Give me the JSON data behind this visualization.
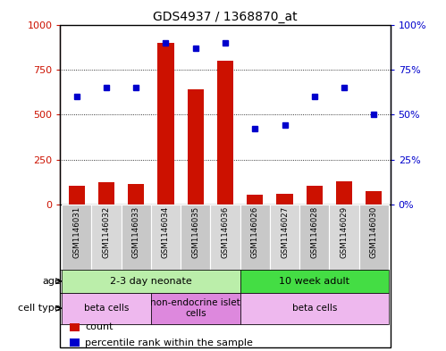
{
  "title": "GDS4937 / 1368870_at",
  "samples": [
    "GSM1146031",
    "GSM1146032",
    "GSM1146033",
    "GSM1146034",
    "GSM1146035",
    "GSM1146036",
    "GSM1146026",
    "GSM1146027",
    "GSM1146028",
    "GSM1146029",
    "GSM1146030"
  ],
  "counts": [
    105,
    125,
    115,
    900,
    640,
    800,
    55,
    60,
    105,
    130,
    75
  ],
  "percentiles": [
    60,
    65,
    65,
    90,
    87,
    90,
    42,
    44,
    60,
    65,
    50
  ],
  "ylim_left": [
    0,
    1000
  ],
  "ylim_right": [
    0,
    100
  ],
  "yticks_left": [
    0,
    250,
    500,
    750,
    1000
  ],
  "ytick_labels_left": [
    "0",
    "250",
    "500",
    "750",
    "1000"
  ],
  "yticks_right": [
    0,
    25,
    50,
    75,
    100
  ],
  "ytick_labels_right": [
    "0%",
    "25%",
    "50%",
    "75%",
    "100%"
  ],
  "bar_color": "#cc1100",
  "dot_color": "#0000cc",
  "grid_color": "#000000",
  "age_groups": [
    {
      "label": "2-3 day neonate",
      "start": 0,
      "end": 6,
      "color": "#bbeeaa"
    },
    {
      "label": "10 week adult",
      "start": 6,
      "end": 11,
      "color": "#44dd44"
    }
  ],
  "cell_type_groups": [
    {
      "label": "beta cells",
      "start": 0,
      "end": 3,
      "color": "#eeb8ee"
    },
    {
      "label": "non-endocrine islet\ncells",
      "start": 3,
      "end": 6,
      "color": "#dd88dd"
    },
    {
      "label": "beta cells",
      "start": 6,
      "end": 11,
      "color": "#eeb8ee"
    }
  ],
  "legend_items": [
    {
      "color": "#cc1100",
      "label": "count"
    },
    {
      "color": "#0000cc",
      "label": "percentile rank within the sample"
    }
  ],
  "left_color": "#cc1100",
  "right_color": "#0000cc",
  "bar_width": 0.55
}
